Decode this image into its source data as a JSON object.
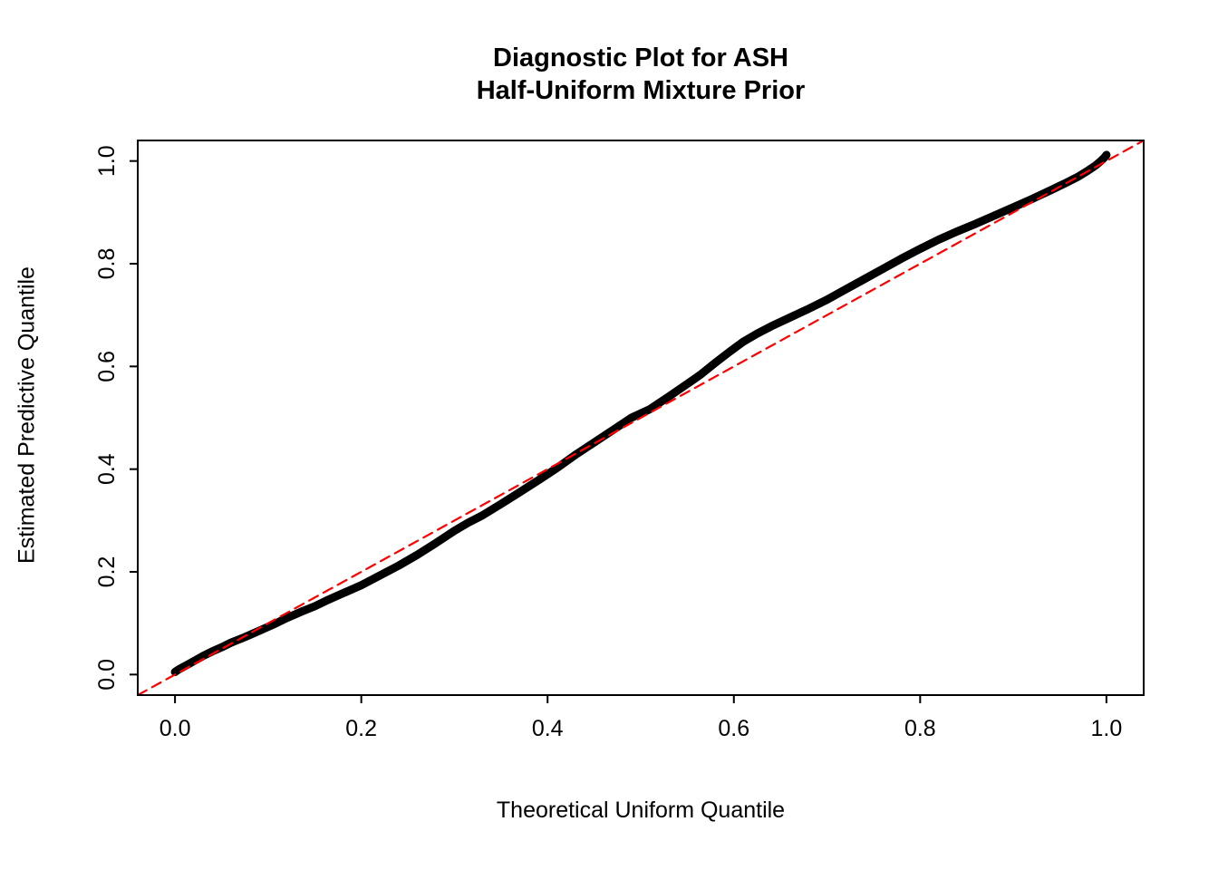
{
  "page": {
    "background": "#FFFFFF"
  },
  "chart_data": {
    "type": "line",
    "title": "Diagnostic Plot for ASH\nHalf-Uniform Mixture Prior",
    "title_lines": [
      "Diagnostic Plot for ASH",
      "Half-Uniform Mixture Prior"
    ],
    "xlabel": "Theoretical Uniform Quantile",
    "ylabel": "Estimated Predictive Quantile",
    "xlim": [
      -0.04,
      1.04
    ],
    "ylim": [
      -0.04,
      1.04
    ],
    "xticks": [
      0.0,
      0.2,
      0.4,
      0.6,
      0.8,
      1.0
    ],
    "yticks": [
      0.0,
      0.2,
      0.4,
      0.6,
      0.8,
      1.0
    ],
    "xtick_labels": [
      "0.0",
      "0.2",
      "0.4",
      "0.6",
      "0.8",
      "1.0"
    ],
    "ytick_labels": [
      "0.0",
      "0.2",
      "0.4",
      "0.6",
      "0.8",
      "1.0"
    ],
    "grid": false,
    "legend": null,
    "box_color": "#000000",
    "series": [
      {
        "name": "estimated-vs-theoretical-quantiles",
        "type": "line",
        "style": "solid",
        "color": "#000000",
        "linewidth": 9,
        "points": [
          [
            0.0,
            0.005
          ],
          [
            0.004,
            0.01
          ],
          [
            0.01,
            0.016
          ],
          [
            0.016,
            0.022
          ],
          [
            0.022,
            0.028
          ],
          [
            0.03,
            0.036
          ],
          [
            0.04,
            0.045
          ],
          [
            0.05,
            0.053
          ],
          [
            0.06,
            0.062
          ],
          [
            0.075,
            0.073
          ],
          [
            0.09,
            0.085
          ],
          [
            0.105,
            0.097
          ],
          [
            0.12,
            0.11
          ],
          [
            0.135,
            0.122
          ],
          [
            0.15,
            0.133
          ],
          [
            0.165,
            0.146
          ],
          [
            0.18,
            0.158
          ],
          [
            0.2,
            0.174
          ],
          [
            0.22,
            0.193
          ],
          [
            0.24,
            0.212
          ],
          [
            0.26,
            0.233
          ],
          [
            0.28,
            0.256
          ],
          [
            0.3,
            0.28
          ],
          [
            0.315,
            0.296
          ],
          [
            0.33,
            0.31
          ],
          [
            0.35,
            0.332
          ],
          [
            0.37,
            0.355
          ],
          [
            0.39,
            0.378
          ],
          [
            0.41,
            0.402
          ],
          [
            0.43,
            0.428
          ],
          [
            0.45,
            0.452
          ],
          [
            0.47,
            0.476
          ],
          [
            0.49,
            0.5
          ],
          [
            0.51,
            0.517
          ],
          [
            0.53,
            0.541
          ],
          [
            0.55,
            0.566
          ],
          [
            0.565,
            0.585
          ],
          [
            0.58,
            0.607
          ],
          [
            0.595,
            0.628
          ],
          [
            0.61,
            0.648
          ],
          [
            0.625,
            0.664
          ],
          [
            0.64,
            0.678
          ],
          [
            0.66,
            0.695
          ],
          [
            0.68,
            0.712
          ],
          [
            0.7,
            0.73
          ],
          [
            0.72,
            0.75
          ],
          [
            0.74,
            0.77
          ],
          [
            0.76,
            0.79
          ],
          [
            0.78,
            0.81
          ],
          [
            0.8,
            0.829
          ],
          [
            0.82,
            0.847
          ],
          [
            0.84,
            0.863
          ],
          [
            0.86,
            0.878
          ],
          [
            0.88,
            0.894
          ],
          [
            0.9,
            0.91
          ],
          [
            0.92,
            0.926
          ],
          [
            0.94,
            0.943
          ],
          [
            0.955,
            0.956
          ],
          [
            0.97,
            0.97
          ],
          [
            0.98,
            0.981
          ],
          [
            0.988,
            0.991
          ],
          [
            0.994,
            1.0
          ],
          [
            0.998,
            1.007
          ],
          [
            1.0,
            1.012
          ]
        ]
      },
      {
        "name": "identity-reference-line",
        "type": "line",
        "style": "dashed",
        "color": "#FF0000",
        "linewidth": 2.2,
        "points": [
          [
            -0.04,
            -0.04
          ],
          [
            1.04,
            1.04
          ]
        ]
      }
    ]
  }
}
